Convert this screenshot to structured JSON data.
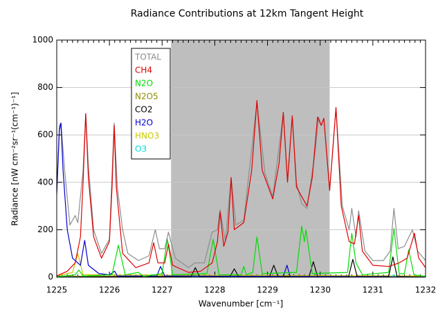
{
  "chart_data": {
    "type": "line",
    "title": "Radiance Contributions at 12km Tangent Height",
    "x_label": "Wavenumber [cm⁻¹]",
    "y_label": "Radiance  [nW cm⁻²sr⁻¹(cm⁻¹)⁻¹]",
    "xlim": [
      1225,
      1232
    ],
    "xticks": [
      1225,
      1226,
      1227,
      1228,
      1229,
      1230,
      1231,
      1232
    ],
    "ylim": [
      0,
      1000
    ],
    "yticks": [
      0,
      200,
      400,
      600,
      800,
      1000
    ],
    "grid": true,
    "legend": "upper left",
    "shaded_xlim": [
      1227.17,
      1230.18
    ],
    "shade_color": "#bebebe",
    "series": [
      {
        "name": "TOTAL",
        "color": "#8c8c8c",
        "x": [
          1225,
          1225.05,
          1225.08,
          1225.15,
          1225.25,
          1225.35,
          1225.4,
          1225.5,
          1225.55,
          1225.6,
          1225.7,
          1225.85,
          1226.0,
          1226.09,
          1226.15,
          1226.25,
          1226.35,
          1226.55,
          1226.75,
          1226.87,
          1226.95,
          1227.05,
          1227.12,
          1227.25,
          1227.5,
          1227.62,
          1227.8,
          1227.95,
          1228.05,
          1228.1,
          1228.2,
          1228.31,
          1228.4,
          1228.55,
          1228.8,
          1228.95,
          1229.1,
          1229.3,
          1229.38,
          1229.47,
          1229.55,
          1229.65,
          1229.75,
          1229.9,
          1229.97,
          1230.02,
          1230.07,
          1230.18,
          1230.3,
          1230.42,
          1230.55,
          1230.6,
          1230.68,
          1230.73,
          1230.85,
          1231.0,
          1231.2,
          1231.33,
          1231.4,
          1231.48,
          1231.6,
          1231.75,
          1231.85,
          1232
        ],
        "values": [
          360,
          640,
          650,
          450,
          220,
          260,
          230,
          450,
          690,
          470,
          200,
          100,
          160,
          650,
          380,
          200,
          100,
          70,
          90,
          200,
          120,
          120,
          190,
          80,
          40,
          60,
          60,
          190,
          200,
          285,
          150,
          420,
          220,
          240,
          740,
          440,
          340,
          690,
          410,
          680,
          400,
          310,
          290,
          520,
          675,
          640,
          670,
          370,
          715,
          300,
          200,
          290,
          170,
          280,
          110,
          70,
          70,
          110,
          290,
          120,
          130,
          200,
          110,
          70
        ]
      },
      {
        "name": "CH4",
        "color": "#e00000",
        "x": [
          1225,
          1225.2,
          1225.35,
          1225.45,
          1225.5,
          1225.55,
          1225.6,
          1225.7,
          1225.85,
          1226.0,
          1226.05,
          1226.09,
          1226.13,
          1226.25,
          1226.5,
          1226.75,
          1226.84,
          1226.92,
          1227.05,
          1227.12,
          1227.2,
          1227.5,
          1227.73,
          1227.95,
          1228.05,
          1228.1,
          1228.17,
          1228.25,
          1228.31,
          1228.37,
          1228.55,
          1228.7,
          1228.8,
          1228.9,
          1229.1,
          1229.22,
          1229.3,
          1229.38,
          1229.47,
          1229.55,
          1229.75,
          1229.85,
          1229.95,
          1230.02,
          1230.07,
          1230.18,
          1230.3,
          1230.4,
          1230.55,
          1230.65,
          1230.73,
          1230.8,
          1231.0,
          1231.3,
          1231.5,
          1231.65,
          1231.79,
          1231.87,
          1232
        ],
        "values": [
          5,
          25,
          60,
          170,
          400,
          690,
          420,
          170,
          80,
          150,
          380,
          640,
          380,
          100,
          40,
          60,
          145,
          60,
          60,
          140,
          50,
          20,
          25,
          60,
          150,
          275,
          130,
          190,
          420,
          200,
          230,
          450,
          745,
          450,
          330,
          480,
          695,
          400,
          680,
          380,
          300,
          420,
          675,
          640,
          670,
          365,
          715,
          300,
          150,
          140,
          260,
          110,
          50,
          45,
          60,
          80,
          185,
          80,
          40
        ]
      },
      {
        "name": "N2O",
        "color": "#00dd00",
        "x": [
          1225,
          1225.35,
          1225.42,
          1225.5,
          1226.05,
          1226.17,
          1226.3,
          1226.55,
          1226.65,
          1227.0,
          1227.1,
          1227.2,
          1227.85,
          1227.97,
          1228.08,
          1228.5,
          1228.55,
          1228.6,
          1228.72,
          1228.8,
          1228.9,
          1229.55,
          1229.65,
          1229.7,
          1229.73,
          1229.85,
          1230.52,
          1230.6,
          1230.68,
          1230.8,
          1231.3,
          1231.4,
          1231.5,
          1231.6,
          1231.68,
          1231.78,
          1232
        ],
        "values": [
          2,
          10,
          30,
          5,
          10,
          135,
          10,
          20,
          3,
          15,
          160,
          10,
          15,
          160,
          10,
          10,
          45,
          10,
          20,
          170,
          15,
          20,
          215,
          150,
          200,
          15,
          20,
          185,
          60,
          10,
          20,
          205,
          15,
          15,
          115,
          10,
          3
        ]
      },
      {
        "name": "N2O5",
        "color": "#8b8b00",
        "x": [
          1225,
          1226,
          1227,
          1228,
          1229,
          1230,
          1231,
          1232
        ],
        "values": [
          4,
          4,
          4,
          4,
          4,
          4,
          4,
          4
        ]
      },
      {
        "name": "CO2",
        "color": "#000000",
        "x": [
          1225,
          1227.55,
          1227.63,
          1227.71,
          1228.29,
          1228.37,
          1228.45,
          1229.04,
          1229.12,
          1229.2,
          1229.79,
          1229.87,
          1229.95,
          1230.54,
          1230.62,
          1230.7,
          1231.3,
          1231.38,
          1231.46,
          1232
        ],
        "values": [
          0,
          3,
          40,
          3,
          3,
          35,
          3,
          3,
          50,
          3,
          3,
          65,
          3,
          3,
          75,
          3,
          3,
          85,
          3,
          0
        ]
      },
      {
        "name": "H2O",
        "color": "#0000cc",
        "x": [
          1225,
          1225.05,
          1225.08,
          1225.12,
          1225.2,
          1225.3,
          1225.45,
          1225.53,
          1225.6,
          1225.8,
          1226.0,
          1226.1,
          1226.15,
          1226.9,
          1226.97,
          1227.05,
          1229.3,
          1229.37,
          1229.43,
          1232
        ],
        "values": [
          350,
          620,
          650,
          450,
          200,
          80,
          50,
          155,
          50,
          15,
          10,
          25,
          5,
          5,
          45,
          5,
          3,
          50,
          3,
          0
        ]
      },
      {
        "name": "HNO3",
        "color": "#c8c800",
        "x": [
          1225,
          1225.3,
          1225.4,
          1225.5,
          1232
        ],
        "values": [
          5,
          20,
          100,
          10,
          5
        ]
      },
      {
        "name": "O3",
        "color": "#00dddd",
        "x": [
          1225,
          1231.35,
          1231.4,
          1231.45,
          1232
        ],
        "values": [
          1,
          1,
          10,
          1,
          1
        ]
      }
    ]
  }
}
